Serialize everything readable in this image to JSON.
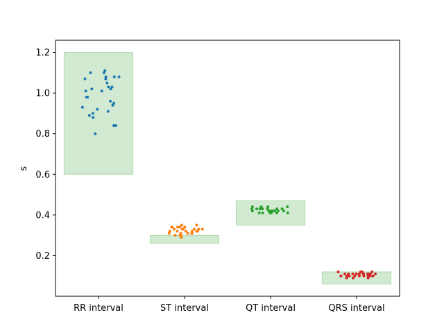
{
  "chart_data": {
    "type": "scatter",
    "title": "",
    "xlabel": "",
    "ylabel": "s",
    "ylim": [
      0.0,
      1.26
    ],
    "yticks": [
      0.2,
      0.4,
      0.6,
      0.8,
      1.0,
      1.2
    ],
    "ytick_labels": [
      "0.2",
      "0.4",
      "0.6",
      "0.8",
      "1.0",
      "1.2"
    ],
    "categories": [
      "RR interval",
      "ST interval",
      "QT interval",
      "QRS interval"
    ],
    "grid": false,
    "band_color": "#2ca02c",
    "normal_ranges": [
      {
        "category": "RR interval",
        "low": 0.6,
        "high": 1.2
      },
      {
        "category": "ST interval",
        "low": 0.26,
        "high": 0.3
      },
      {
        "category": "QT interval",
        "low": 0.35,
        "high": 0.47
      },
      {
        "category": "QRS interval",
        "low": 0.06,
        "high": 0.12
      }
    ],
    "series": [
      {
        "category": "RR interval",
        "color": "#1f77b4",
        "values": [
          1.11,
          1.1,
          1.1,
          1.08,
          1.08,
          1.07,
          1.07,
          1.08,
          1.05,
          1.03,
          1.03,
          1.02,
          1.02,
          1.01,
          1.01,
          0.98,
          0.98,
          0.96,
          0.95,
          0.94,
          0.93,
          0.92,
          0.91,
          0.9,
          0.89,
          0.88,
          0.84,
          0.84,
          0.8
        ]
      },
      {
        "category": "ST interval",
        "color": "#ff7f0e",
        "values": [
          0.35,
          0.35,
          0.34,
          0.34,
          0.34,
          0.34,
          0.34,
          0.33,
          0.33,
          0.33,
          0.33,
          0.33,
          0.33,
          0.32,
          0.32,
          0.32,
          0.32,
          0.32,
          0.32,
          0.31,
          0.31,
          0.31,
          0.31,
          0.31,
          0.3,
          0.3,
          0.3,
          0.29
        ]
      },
      {
        "category": "QT interval",
        "color": "#2ca02c",
        "values": [
          0.44,
          0.44,
          0.44,
          0.44,
          0.43,
          0.43,
          0.43,
          0.43,
          0.43,
          0.43,
          0.43,
          0.43,
          0.42,
          0.42,
          0.42,
          0.42,
          0.42,
          0.42,
          0.42,
          0.42,
          0.41,
          0.41,
          0.41,
          0.41,
          0.41,
          0.41,
          0.41
        ]
      },
      {
        "category": "QRS interval",
        "color": "#d62728",
        "values": [
          0.12,
          0.12,
          0.12,
          0.12,
          0.12,
          0.11,
          0.11,
          0.11,
          0.11,
          0.11,
          0.11,
          0.11,
          0.11,
          0.11,
          0.11,
          0.11,
          0.1,
          0.1,
          0.1,
          0.1,
          0.1,
          0.1,
          0.1,
          0.1,
          0.1,
          0.1,
          0.09,
          0.09,
          0.09
        ]
      }
    ]
  }
}
